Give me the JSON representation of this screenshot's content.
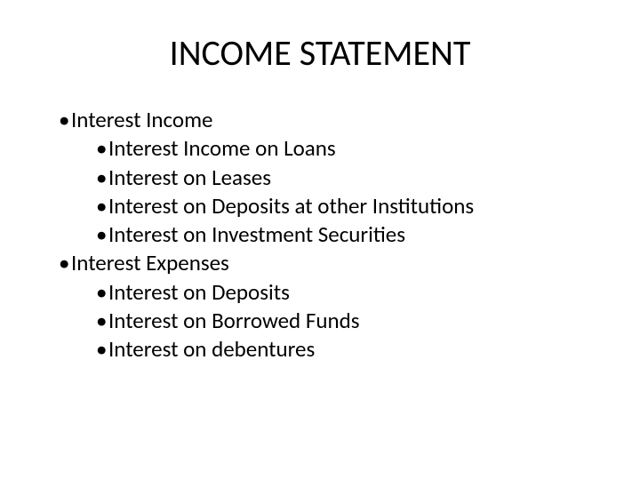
{
  "slide": {
    "title": "INCOME STATEMENT",
    "bullets": {
      "item1": "Interest Income",
      "item1_1": "Interest Income on Loans",
      "item1_2": "Interest on Leases",
      "item1_3": "Interest on Deposits at other Institutions",
      "item1_4": "Interest on Investment Securities",
      "item2": "Interest Expenses",
      "item2_1": "Interest on Deposits",
      "item2_2": "Interest on Borrowed Funds",
      "item2_3": "Interest on debentures"
    }
  },
  "colors": {
    "background": "#ffffff",
    "text": "#000000"
  },
  "typography": {
    "title_fontsize": 40,
    "body_fontsize": 25,
    "font_family": "Calibri"
  }
}
